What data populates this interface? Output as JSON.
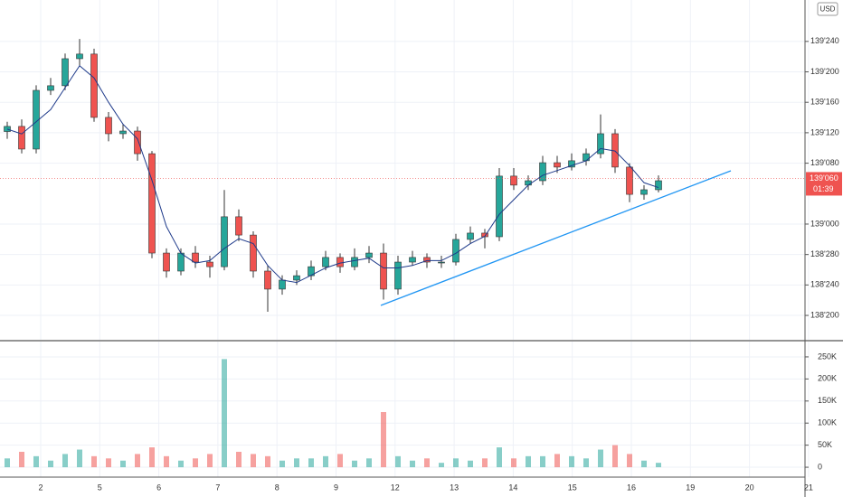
{
  "chart_data": {
    "type": "candlestick",
    "currency": "USD",
    "categories": [
      "2",
      "5",
      "6",
      "7",
      "8",
      "9",
      "12",
      "13",
      "14",
      "15",
      "16",
      "19",
      "20",
      "21"
    ],
    "up_color": "#26a69a",
    "down_color": "#ef5350",
    "ma_color": "#1e3a8a",
    "grid": true,
    "open": [
      139.38,
      139.401,
      139.308,
      139.549,
      139.568,
      139.679,
      139.698,
      139.438,
      139.371,
      139.382,
      139.289,
      138.881,
      138.807,
      138.881,
      138.844,
      138.825,
      139.03,
      138.955,
      138.807,
      138.733,
      138.77,
      138.788,
      138.825,
      138.863,
      138.825,
      138.863,
      138.881,
      138.733,
      138.844,
      138.863,
      138.844,
      138.844,
      138.937,
      138.963,
      138.948,
      139.197,
      139.16,
      139.178,
      139.252,
      139.234,
      139.26,
      139.289,
      139.371,
      139.234,
      139.122,
      139.141
    ],
    "high": [
      139.42,
      139.43,
      139.57,
      139.6,
      139.7,
      139.76,
      139.72,
      139.46,
      139.41,
      139.4,
      139.3,
      138.9,
      138.9,
      138.91,
      138.87,
      139.14,
      139.06,
      138.97,
      138.83,
      138.79,
      138.81,
      138.85,
      138.89,
      138.88,
      138.9,
      138.91,
      138.92,
      138.87,
      138.89,
      138.88,
      138.87,
      138.96,
      138.99,
      138.98,
      139.23,
      139.23,
      139.2,
      139.28,
      139.28,
      139.29,
      139.31,
      139.45,
      139.39,
      139.25,
      139.16,
      139.2
    ],
    "low": [
      139.35,
      139.29,
      139.29,
      139.53,
      139.55,
      139.65,
      139.42,
      139.34,
      139.35,
      139.26,
      138.86,
      138.78,
      138.79,
      138.82,
      138.78,
      138.81,
      138.93,
      138.78,
      138.64,
      138.71,
      138.75,
      138.77,
      138.81,
      138.8,
      138.81,
      138.84,
      138.69,
      138.71,
      138.83,
      138.82,
      138.82,
      138.83,
      138.92,
      138.9,
      138.93,
      139.14,
      139.14,
      139.16,
      139.21,
      139.22,
      139.24,
      139.27,
      139.21,
      139.09,
      139.1,
      139.13
    ],
    "close": [
      139.401,
      139.308,
      139.549,
      139.568,
      139.679,
      139.698,
      139.438,
      139.371,
      139.382,
      139.289,
      138.881,
      138.807,
      138.881,
      138.844,
      138.825,
      139.03,
      138.955,
      138.807,
      138.733,
      138.77,
      138.788,
      138.825,
      138.863,
      138.825,
      138.863,
      138.881,
      138.733,
      138.844,
      138.863,
      138.844,
      138.844,
      138.937,
      138.963,
      138.948,
      139.197,
      139.16,
      139.178,
      139.252,
      139.234,
      139.26,
      139.289,
      139.371,
      139.234,
      139.122,
      139.141,
      139.178
    ],
    "ma": [
      139.39,
      139.37,
      139.42,
      139.47,
      139.56,
      139.65,
      139.6,
      139.5,
      139.41,
      139.35,
      139.18,
      138.99,
      138.88,
      138.84,
      138.85,
      138.9,
      138.94,
      138.92,
      138.83,
      138.77,
      138.76,
      138.79,
      138.82,
      138.84,
      138.85,
      138.86,
      138.82,
      138.82,
      138.83,
      138.85,
      138.85,
      138.88,
      138.92,
      138.95,
      139.04,
      139.1,
      139.16,
      139.2,
      139.22,
      139.24,
      139.26,
      139.31,
      139.3,
      139.24,
      139.17,
      139.15
    ],
    "ylim": [
      138.525,
      139.92
    ],
    "yticks": [
      {
        "value": 138.625,
        "label": "138'200"
      },
      {
        "value": 138.75,
        "label": "138'240"
      },
      {
        "value": 138.875,
        "label": "138'280"
      },
      {
        "value": 139.0,
        "label": "139'000"
      },
      {
        "value": 139.25,
        "label": "139'080"
      },
      {
        "value": 139.375,
        "label": "139'120"
      },
      {
        "value": 139.5,
        "label": "139'160"
      },
      {
        "value": 139.625,
        "label": "139'200"
      },
      {
        "value": 139.75,
        "label": "139'240"
      }
    ],
    "last": {
      "value": 139.1875,
      "label": "139'060"
    },
    "countdown": "01:39",
    "volume": {
      "values": [
        20000,
        35000,
        25000,
        15000,
        30000,
        40000,
        25000,
        20000,
        15000,
        30000,
        45000,
        25000,
        15000,
        20000,
        30000,
        245000,
        35000,
        30000,
        25000,
        15000,
        20000,
        20000,
        25000,
        30000,
        15000,
        20000,
        125000,
        25000,
        15000,
        20000,
        10000,
        20000,
        15000,
        20000,
        45000,
        20000,
        25000,
        25000,
        30000,
        25000,
        20000,
        40000,
        50000,
        30000,
        15000,
        10000
      ],
      "ylim": [
        -22400,
        284700
      ],
      "yticks": [
        0,
        {
          "value": 50000,
          "label": "50K"
        },
        {
          "value": 100000,
          "label": "100K"
        },
        {
          "value": 150000,
          "label": "150K"
        },
        {
          "value": 200000,
          "label": "200K"
        },
        {
          "value": 250000,
          "label": "250K"
        }
      ]
    }
  }
}
